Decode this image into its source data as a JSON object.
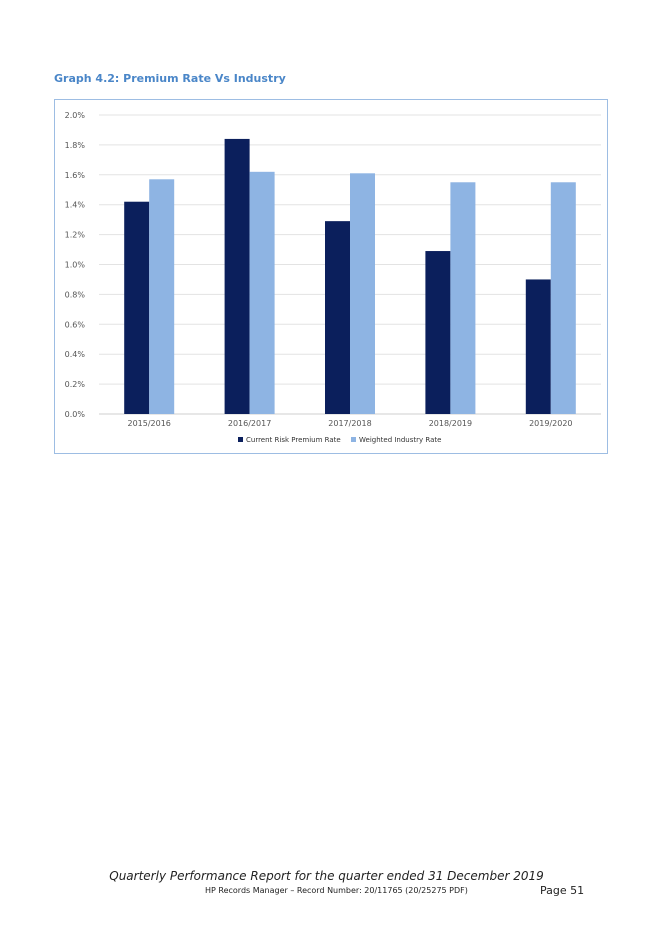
{
  "document": {
    "graph_title": "Graph 4.2:  Premium Rate Vs Industry",
    "footer_title": "Quarterly Performance Report for the quarter ended 31 December 2019",
    "footer_record": "HP Records Manager – Record Number: 20/11765 (20/25275 PDF)",
    "page_label": "Page 51"
  },
  "colors": {
    "series_current": "#0b1f5c",
    "series_industry": "#8eb4e3",
    "title": "#4a86c8",
    "frame": "#9dbde3",
    "grid": "#e3e3e3"
  },
  "chart_data": {
    "type": "bar",
    "categories": [
      "2015/2016",
      "2016/2017",
      "2017/2018",
      "2018/2019",
      "2019/2020"
    ],
    "series": [
      {
        "name": "Current Risk Premium Rate",
        "values": [
          1.42,
          1.84,
          1.29,
          1.09,
          0.9
        ]
      },
      {
        "name": "Weighted Industry Rate",
        "values": [
          1.57,
          1.62,
          1.61,
          1.55,
          1.55
        ]
      }
    ],
    "y_ticks": [
      "0.0%",
      "0.2%",
      "0.4%",
      "0.6%",
      "0.8%",
      "1.0%",
      "1.2%",
      "1.4%",
      "1.6%",
      "1.8%",
      "2.0%"
    ],
    "ylim": [
      0,
      2.0
    ],
    "grid": true,
    "legend_position": "bottom"
  }
}
